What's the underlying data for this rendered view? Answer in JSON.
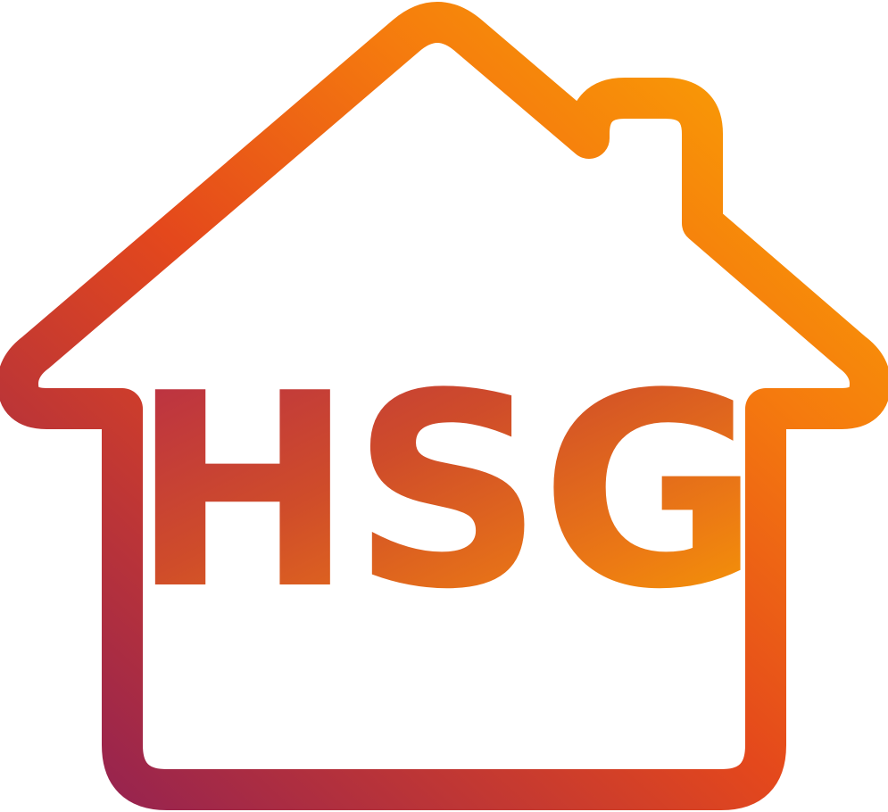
{
  "logo": {
    "text": "HSG",
    "gradient": {
      "start": "#9e1f54",
      "mid_top": "#f04e1a",
      "mid": "#f07a10",
      "end": "#ffb800"
    },
    "house_outline_icon": "house-outline-icon"
  }
}
